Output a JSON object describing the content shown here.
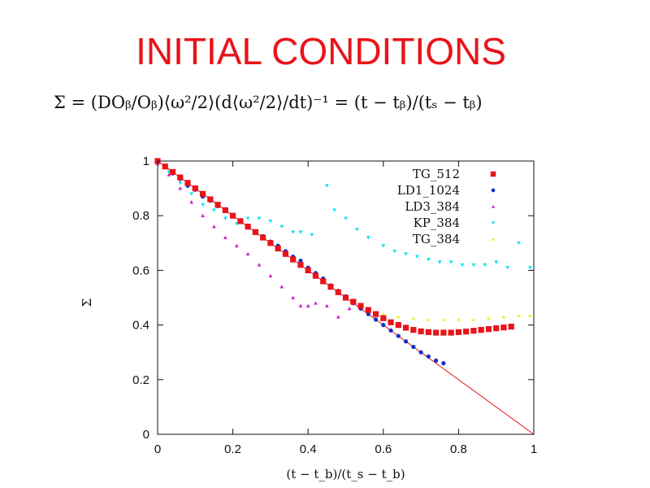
{
  "slide": {
    "title": "INITIAL CONDITIONS",
    "formula": "Σ = (DOᵦ/Oᵦ)⟨ω²/2⟩(d⟨ω²/2⟩/dt)⁻¹ = (t − tᵦ)/(tₛ − tᵦ)"
  },
  "chart_data": {
    "type": "scatter",
    "xlabel": "(t − t_b)/(t_s − t_b)",
    "ylabel": "Σ",
    "xlim": [
      0,
      1
    ],
    "ylim": [
      0,
      1
    ],
    "xticks": [
      "0",
      "0.2",
      "0.4",
      "0.6",
      "0.8",
      "1"
    ],
    "yticks": [
      "0",
      "0.2",
      "0.4",
      "0.6",
      "0.8",
      "1"
    ],
    "legend_position": "top-right",
    "grid": false,
    "reference_line": {
      "x": [
        0,
        1
      ],
      "y": [
        1,
        0
      ],
      "color": "#e8141a"
    },
    "series": [
      {
        "name": "TG_512",
        "marker": "square",
        "color": "#e8141a",
        "x": [
          0.0,
          0.02,
          0.04,
          0.06,
          0.08,
          0.1,
          0.12,
          0.14,
          0.16,
          0.18,
          0.2,
          0.22,
          0.24,
          0.26,
          0.28,
          0.3,
          0.32,
          0.34,
          0.36,
          0.38,
          0.4,
          0.42,
          0.44,
          0.46,
          0.48,
          0.5,
          0.52,
          0.54,
          0.56,
          0.58,
          0.6,
          0.62,
          0.64,
          0.66,
          0.68,
          0.7,
          0.72,
          0.74,
          0.76,
          0.78,
          0.8,
          0.82,
          0.84,
          0.86,
          0.88,
          0.9,
          0.92,
          0.94
        ],
        "y": [
          1.0,
          0.98,
          0.96,
          0.94,
          0.92,
          0.9,
          0.88,
          0.86,
          0.84,
          0.82,
          0.8,
          0.78,
          0.76,
          0.74,
          0.72,
          0.7,
          0.68,
          0.66,
          0.64,
          0.62,
          0.6,
          0.58,
          0.56,
          0.54,
          0.52,
          0.5,
          0.485,
          0.47,
          0.455,
          0.44,
          0.425,
          0.41,
          0.4,
          0.39,
          0.382,
          0.377,
          0.374,
          0.372,
          0.372,
          0.372,
          0.374,
          0.376,
          0.379,
          0.382,
          0.385,
          0.388,
          0.391,
          0.394
        ]
      },
      {
        "name": "LD1_1024",
        "marker": "circle",
        "color": "#1030c8",
        "x": [
          0.0,
          0.02,
          0.04,
          0.06,
          0.08,
          0.1,
          0.12,
          0.14,
          0.16,
          0.18,
          0.2,
          0.22,
          0.24,
          0.26,
          0.28,
          0.3,
          0.32,
          0.34,
          0.36,
          0.38,
          0.4,
          0.42,
          0.44,
          0.46,
          0.48,
          0.5,
          0.52,
          0.54,
          0.56,
          0.58,
          0.6,
          0.62,
          0.64,
          0.66,
          0.68,
          0.7,
          0.72,
          0.74,
          0.76
        ],
        "y": [
          1.0,
          0.98,
          0.955,
          0.935,
          0.91,
          0.895,
          0.87,
          0.855,
          0.835,
          0.82,
          0.8,
          0.78,
          0.76,
          0.74,
          0.725,
          0.705,
          0.69,
          0.67,
          0.65,
          0.635,
          0.61,
          0.59,
          0.57,
          0.545,
          0.525,
          0.505,
          0.48,
          0.46,
          0.44,
          0.42,
          0.4,
          0.38,
          0.36,
          0.34,
          0.32,
          0.3,
          0.285,
          0.27,
          0.26
        ]
      },
      {
        "name": "LD3_384",
        "marker": "triangle-up",
        "color": "#d020d0",
        "x": [
          0.0,
          0.03,
          0.06,
          0.09,
          0.12,
          0.15,
          0.18,
          0.21,
          0.24,
          0.27,
          0.3,
          0.33,
          0.36,
          0.38,
          0.4,
          0.42,
          0.45,
          0.48,
          0.51
        ],
        "y": [
          0.99,
          0.95,
          0.9,
          0.85,
          0.8,
          0.76,
          0.72,
          0.69,
          0.66,
          0.62,
          0.58,
          0.54,
          0.5,
          0.47,
          0.47,
          0.48,
          0.47,
          0.43,
          0.46
        ]
      },
      {
        "name": "KP_384",
        "marker": "triangle-down",
        "color": "#00e5f0",
        "x": [
          0.0,
          0.03,
          0.06,
          0.09,
          0.12,
          0.15,
          0.18,
          0.21,
          0.24,
          0.27,
          0.3,
          0.33,
          0.36,
          0.38,
          0.41,
          0.45,
          0.47,
          0.5,
          0.53,
          0.56,
          0.6,
          0.63,
          0.66,
          0.69,
          0.72,
          0.75,
          0.78,
          0.81,
          0.84,
          0.87,
          0.9,
          0.93,
          0.96,
          0.99
        ],
        "y": [
          0.99,
          0.96,
          0.92,
          0.88,
          0.84,
          0.82,
          0.79,
          0.77,
          0.79,
          0.79,
          0.78,
          0.76,
          0.74,
          0.74,
          0.73,
          0.91,
          0.82,
          0.79,
          0.75,
          0.72,
          0.69,
          0.67,
          0.66,
          0.65,
          0.64,
          0.63,
          0.63,
          0.62,
          0.62,
          0.62,
          0.63,
          0.61,
          0.7,
          0.61
        ]
      },
      {
        "name": "TG_384",
        "marker": "triangle-up",
        "color": "#f0f030",
        "x": [
          0.0,
          0.04,
          0.08,
          0.12,
          0.16,
          0.2,
          0.24,
          0.28,
          0.32,
          0.36,
          0.4,
          0.44,
          0.48,
          0.52,
          0.56,
          0.6,
          0.64,
          0.68,
          0.72,
          0.76,
          0.8,
          0.84,
          0.88,
          0.92,
          0.96,
          0.99
        ],
        "y": [
          0.99,
          0.96,
          0.92,
          0.88,
          0.84,
          0.8,
          0.76,
          0.72,
          0.68,
          0.64,
          0.6,
          0.56,
          0.52,
          0.49,
          0.46,
          0.44,
          0.43,
          0.425,
          0.42,
          0.42,
          0.42,
          0.42,
          0.425,
          0.43,
          0.435,
          0.435
        ]
      }
    ]
  }
}
